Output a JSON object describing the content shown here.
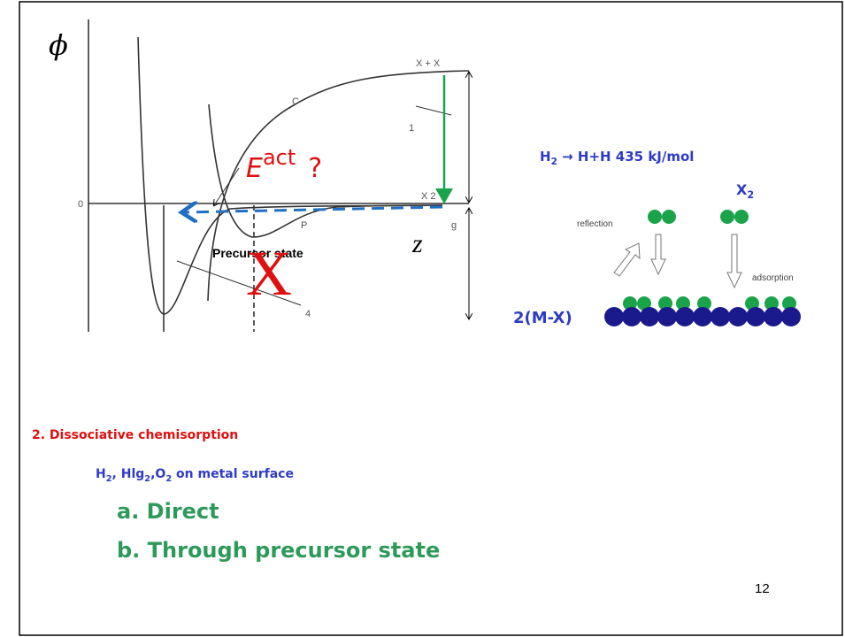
{
  "diagram": {
    "phi": "ϕ",
    "labels": {
      "xx": "X + X",
      "c": "C",
      "one": "1",
      "x2": "X 2",
      "p": "P",
      "four": "4",
      "g": "g",
      "zero": "0"
    },
    "eact": {
      "base": "E",
      "sup": "act",
      "q": "?"
    },
    "precursor": "Precursor state",
    "cross": "X",
    "z": "z"
  },
  "right": {
    "reaction": [
      "H",
      "2",
      " → H+H  435 kJ/mol"
    ],
    "x2": [
      "X",
      "2"
    ],
    "reflection": "reflection",
    "adsorption": "adsorption",
    "surface": "2(M-X)"
  },
  "body": {
    "heading": "2. Dissociative chemisorption",
    "molecules": [
      "H",
      "2",
      ", Hlg",
      "2",
      ",O",
      "2",
      " on metal surface"
    ],
    "items": [
      "a. Direct",
      "b. Through precursor state"
    ]
  },
  "page_number": "12"
}
